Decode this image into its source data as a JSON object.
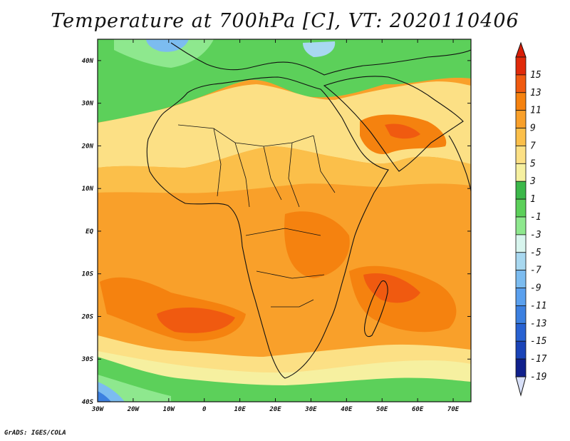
{
  "title": "Temperature at 700hPa [C], VT: 2020110406",
  "footer": "GrADS: IGES/COLA",
  "map": {
    "lon_range": [
      -30,
      75
    ],
    "lat_range": [
      -40,
      45
    ],
    "lat_ticks": [
      {
        "value": 40,
        "label": "40N"
      },
      {
        "value": 30,
        "label": "30N"
      },
      {
        "value": 20,
        "label": "20N"
      },
      {
        "value": 10,
        "label": "10N"
      },
      {
        "value": 0,
        "label": "EQ"
      },
      {
        "value": -10,
        "label": "10S"
      },
      {
        "value": -20,
        "label": "20S"
      },
      {
        "value": -30,
        "label": "30S"
      },
      {
        "value": -40,
        "label": "40S"
      }
    ],
    "lon_ticks": [
      {
        "value": -30,
        "label": "30W"
      },
      {
        "value": -20,
        "label": "20W"
      },
      {
        "value": -10,
        "label": "10W"
      },
      {
        "value": 0,
        "label": "0"
      },
      {
        "value": 10,
        "label": "10E"
      },
      {
        "value": 20,
        "label": "20E"
      },
      {
        "value": 30,
        "label": "30E"
      },
      {
        "value": 40,
        "label": "40E"
      },
      {
        "value": 50,
        "label": "50E"
      },
      {
        "value": 60,
        "label": "60E"
      },
      {
        "value": 70,
        "label": "70E"
      }
    ],
    "colorbar": [
      {
        "label": "15",
        "color": "#e02a0a"
      },
      {
        "label": "13",
        "color": "#f05a10"
      },
      {
        "label": "11",
        "color": "#f5820f"
      },
      {
        "label": "9",
        "color": "#f9a02a"
      },
      {
        "label": "7",
        "color": "#fbbf4a"
      },
      {
        "label": "5",
        "color": "#fce085"
      },
      {
        "label": "3",
        "color": "#f6f0a0"
      },
      {
        "label": "1",
        "color": "#3cb84a"
      },
      {
        "label": "-1",
        "color": "#5cd05a"
      },
      {
        "label": "-3",
        "color": "#8ee88e"
      },
      {
        "label": "-5",
        "color": "#d8f5ee"
      },
      {
        "label": "-7",
        "color": "#a8d8f0"
      },
      {
        "label": "-9",
        "color": "#7cbcf0"
      },
      {
        "label": "-11",
        "color": "#5aa0ee"
      },
      {
        "label": "-13",
        "color": "#3c80e0"
      },
      {
        "label": "-15",
        "color": "#2862d2"
      },
      {
        "label": "-17",
        "color": "#1a44b8"
      },
      {
        "label": "-19",
        "color": "#10208c"
      }
    ],
    "colorbar_top_color": "#d81e08",
    "colorbar_bottom_color": "#d8e0f8"
  }
}
